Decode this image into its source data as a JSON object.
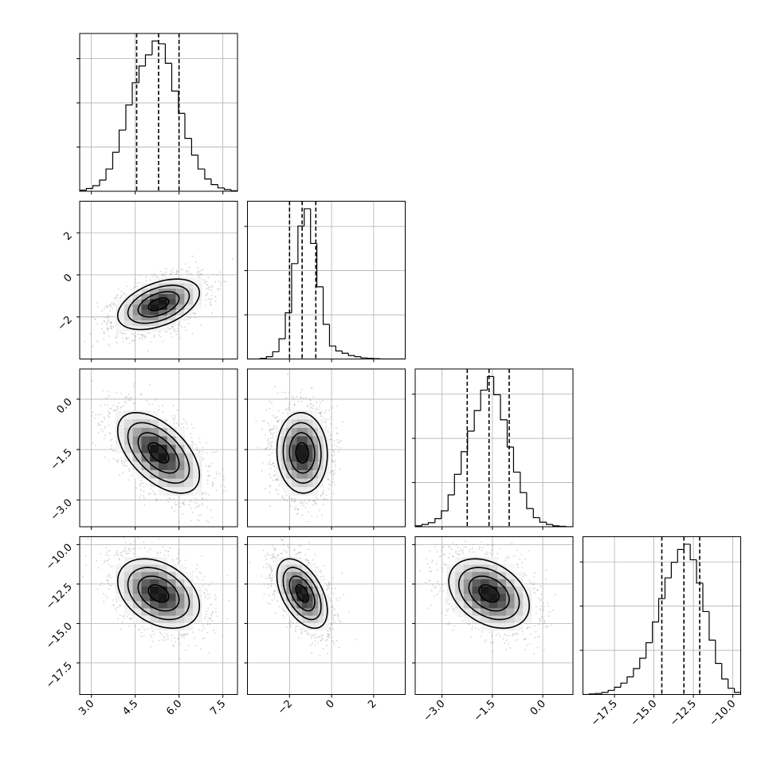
{
  "chart_data": {
    "type": "corner",
    "title": "",
    "n_params": 4,
    "parameters": [
      {
        "label": "",
        "range": [
          2.6,
          8.0
        ],
        "ticks": [
          3.0,
          4.5,
          6.0,
          7.5
        ],
        "tick_labels": [
          "3.0",
          "4.5",
          "6.0",
          "7.5"
        ],
        "quantiles": [
          4.55,
          5.3,
          6.0
        ],
        "mean": 5.3,
        "sd": 0.7
      },
      {
        "label": "",
        "range": [
          -4.0,
          3.5
        ],
        "ticks": [
          -2,
          0,
          2
        ],
        "tick_labels": [
          "−2",
          "0",
          "2"
        ],
        "quantiles": [
          -2.0,
          -1.4,
          -0.75
        ],
        "mean": -1.4,
        "sd": 0.6
      },
      {
        "label": "",
        "range": [
          -3.8,
          0.9
        ],
        "ticks": [
          -3.0,
          -1.5,
          0.0
        ],
        "tick_labels": [
          "−3.0",
          "−1.5",
          "0.0"
        ],
        "quantiles": [
          -2.25,
          -1.6,
          -1.0
        ],
        "mean": -1.6,
        "sd": 0.6
      },
      {
        "label": "",
        "range": [
          -19.5,
          -9.5
        ],
        "ticks": [
          -17.5,
          -15.0,
          -12.5,
          -10.0
        ],
        "tick_labels": [
          "−17.5",
          "−15.0",
          "−12.5",
          "−10.0"
        ],
        "quantiles": [
          -14.5,
          -13.1,
          -12.1
        ],
        "mean": -13.1,
        "sd": 1.1
      }
    ],
    "correlations": [
      [
        1.0,
        0.45,
        -0.55,
        -0.35
      ],
      [
        0.45,
        1.0,
        -0.05,
        -0.5
      ],
      [
        -0.55,
        -0.05,
        1.0,
        -0.35
      ],
      [
        -0.35,
        -0.5,
        -0.35,
        1.0
      ]
    ],
    "histograms": [
      {
        "param": 0,
        "bin_edges": [
          2.6,
          2.83,
          3.05,
          3.28,
          3.5,
          3.73,
          3.95,
          4.18,
          4.4,
          4.63,
          4.85,
          5.08,
          5.3,
          5.53,
          5.75,
          5.98,
          6.2,
          6.43,
          6.65,
          6.88,
          7.1,
          7.33,
          7.55,
          7.78,
          8.0
        ],
        "counts": [
          2,
          5,
          10,
          20,
          40,
          70,
          110,
          155,
          195,
          225,
          245,
          270,
          265,
          230,
          180,
          140,
          95,
          65,
          40,
          22,
          12,
          6,
          3,
          1
        ]
      },
      {
        "param": 1,
        "bin_edges": [
          -4.0,
          -3.7,
          -3.4,
          -3.1,
          -2.8,
          -2.5,
          -2.2,
          -1.9,
          -1.6,
          -1.3,
          -1.0,
          -0.7,
          -0.4,
          -0.1,
          0.2,
          0.5,
          0.8,
          1.1,
          1.4,
          1.7,
          2.0,
          2.3,
          2.6,
          2.9,
          3.2,
          3.5
        ],
        "counts": [
          0,
          0,
          2,
          8,
          25,
          70,
          160,
          330,
          460,
          520,
          400,
          250,
          120,
          45,
          28,
          20,
          12,
          8,
          4,
          2,
          1,
          0,
          0,
          0,
          0
        ]
      },
      {
        "param": 2,
        "bin_edges": [
          -3.8,
          -3.6,
          -3.41,
          -3.21,
          -3.02,
          -2.82,
          -2.63,
          -2.43,
          -2.24,
          -2.04,
          -1.85,
          -1.65,
          -1.46,
          -1.26,
          -1.06,
          -0.87,
          -0.67,
          -0.48,
          -0.28,
          -0.09,
          0.11,
          0.3,
          0.5,
          0.7,
          0.9
        ],
        "counts": [
          2,
          5,
          9,
          18,
          35,
          70,
          115,
          165,
          210,
          255,
          300,
          330,
          290,
          235,
          175,
          120,
          75,
          40,
          20,
          10,
          5,
          2,
          1,
          0
        ]
      },
      {
        "param": 3,
        "bin_edges": [
          -19.5,
          -19.1,
          -18.7,
          -18.3,
          -17.9,
          -17.5,
          -17.1,
          -16.7,
          -16.3,
          -15.9,
          -15.5,
          -15.1,
          -14.7,
          -14.3,
          -13.9,
          -13.5,
          -13.1,
          -12.7,
          -12.3,
          -11.9,
          -11.5,
          -11.1,
          -10.7,
          -10.3,
          -9.9,
          -9.5
        ],
        "counts": [
          0,
          1,
          2,
          4,
          8,
          14,
          22,
          34,
          50,
          70,
          100,
          140,
          185,
          225,
          255,
          280,
          290,
          260,
          215,
          160,
          105,
          60,
          30,
          12,
          4
        ]
      }
    ],
    "grid": true,
    "quantile_line_style": "dashed",
    "contour_levels": 4,
    "scatter_color": "#999999",
    "density_colormap": "greys",
    "contour_color": "#000000"
  }
}
